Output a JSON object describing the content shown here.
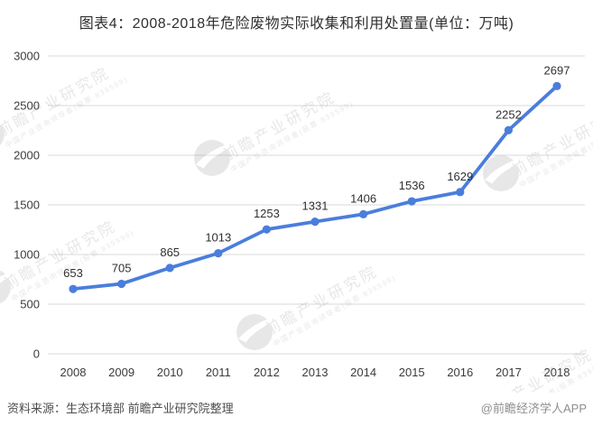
{
  "chart_data": {
    "type": "line",
    "title": "图表4：2008-2018年危险废物实际收集和利用处置量(单位：万吨)",
    "unit": "万吨",
    "categories": [
      "2008",
      "2009",
      "2010",
      "2011",
      "2012",
      "2013",
      "2014",
      "2015",
      "2016",
      "2017",
      "2018"
    ],
    "values": [
      653,
      705,
      865,
      1013,
      1253,
      1331,
      1406,
      1536,
      1629,
      2252,
      2697
    ],
    "xlabel": "",
    "ylabel": "",
    "ylim": [
      0,
      3000
    ],
    "yticks": [
      0,
      500,
      1000,
      1500,
      2000,
      2500,
      3000
    ],
    "grid": true,
    "legend": false,
    "data_labels": true,
    "marker": "circle",
    "line_color": "#4A7EDC"
  },
  "watermark": {
    "brand_text": "前瞻产业研究院",
    "sub_text": "中国产业咨询领导者(股票:839599)",
    "logo": "qianzhan-bird-logo"
  },
  "footer": {
    "source": "资料来源：生态环境部 前瞻产业研究院整理",
    "credit": "@前瞻经济学人APP"
  },
  "colors": {
    "background": "#ffffff",
    "line": "#4A7EDC",
    "gridline": "#D9D9D9",
    "tick_label": "#3b3b3b",
    "data_label": "#303030",
    "title": "#2f2f2f",
    "source_text": "#4d4d4d",
    "credit_text": "#8e8e8e",
    "watermark": "#8a8a8a"
  }
}
